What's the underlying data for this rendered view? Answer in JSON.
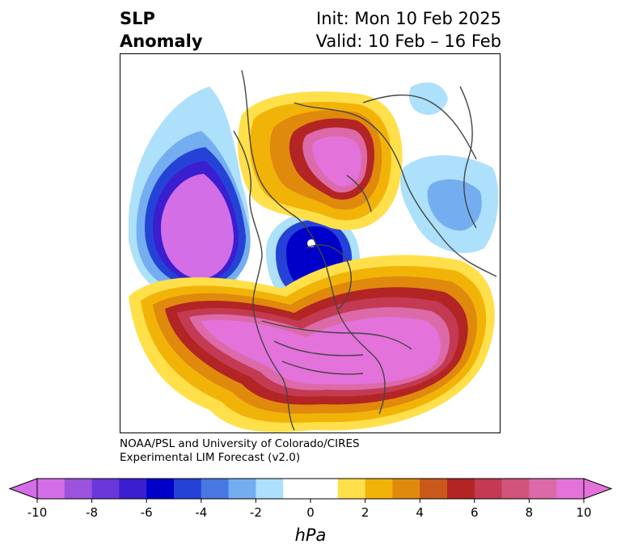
{
  "title": {
    "line1": "SLP",
    "line2": "Anomaly"
  },
  "init": {
    "line1": "Init: Mon 10 Feb 2025",
    "line2": "Valid: 10 Feb – 16 Feb"
  },
  "credit": {
    "line1": "NOAA/PSL and University of Colorado/CIRES",
    "line2": "Experimental LIM Forecast (v2.0)"
  },
  "colorbar": {
    "unit": "hPa",
    "ticks": [
      "-10",
      "-8",
      "-6",
      "-4",
      "-2",
      "0",
      "2",
      "4",
      "6",
      "8",
      "10"
    ],
    "colors": [
      "#d46ee6",
      "#9b52dd",
      "#6a37d8",
      "#3a1ecf",
      "#0000c8",
      "#2542d6",
      "#4a78e3",
      "#75aef0",
      "#ade0fb",
      "#ffffff",
      "#ffffff",
      "#ffe04b",
      "#f2b308",
      "#df8a0d",
      "#c9581a",
      "#b32424",
      "#c33a52",
      "#d1557a",
      "#dc6aa8",
      "#e472db"
    ],
    "extend_low": "#d46ee6",
    "extend_high": "#e472db"
  }
}
